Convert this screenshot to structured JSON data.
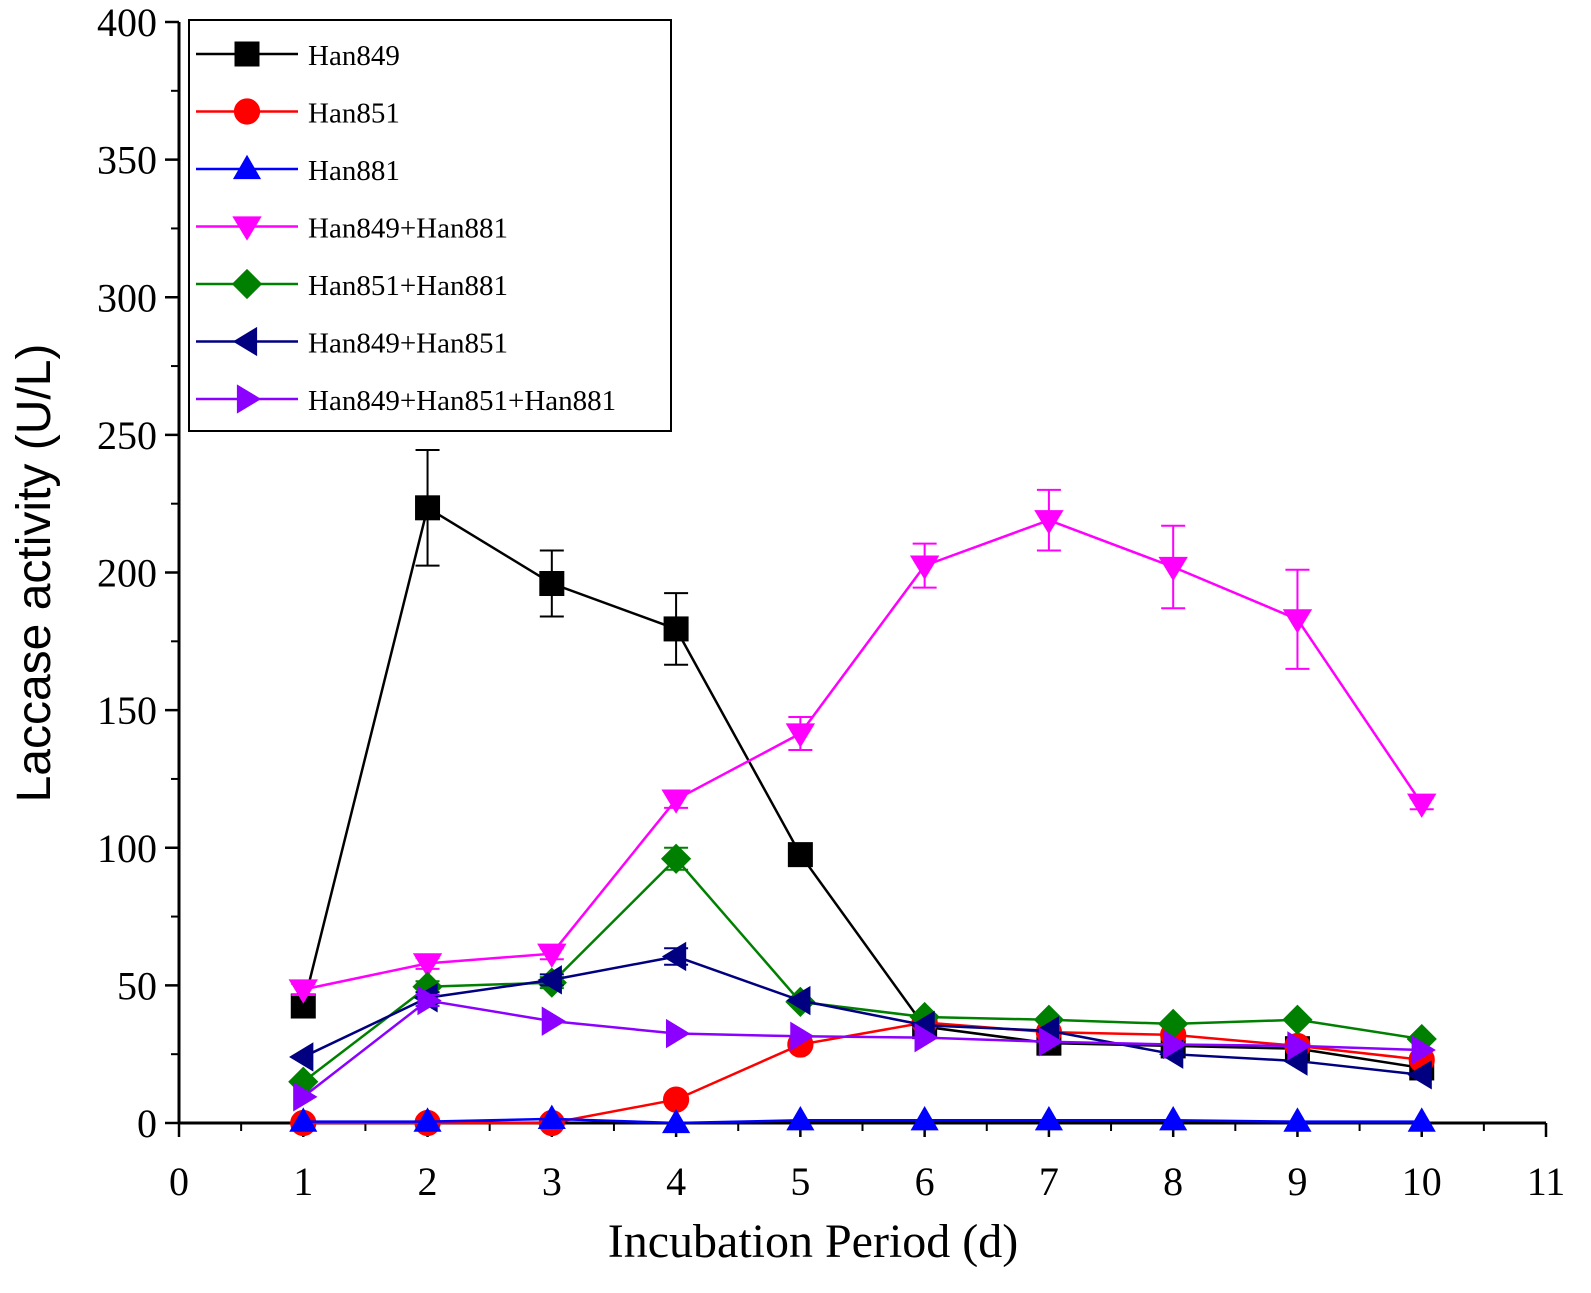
{
  "chart_data": {
    "type": "line",
    "title": "",
    "xlabel": "Incubation Period (d)",
    "ylabel": "Laccase activity (U/L)",
    "xlim": [
      0,
      11
    ],
    "ylim": [
      0,
      400
    ],
    "xticks": [
      0,
      1,
      2,
      3,
      4,
      5,
      6,
      7,
      8,
      9,
      10,
      11
    ],
    "yticks": [
      0,
      50,
      100,
      150,
      200,
      250,
      300,
      350,
      400
    ],
    "xtick_labels": [
      "0",
      "1",
      "2",
      "3",
      "4",
      "5",
      "6",
      "7",
      "8",
      "9",
      "10",
      "11"
    ],
    "ytick_labels": [
      "0",
      "50",
      "100",
      "150",
      "200",
      "250",
      "300",
      "350",
      "400"
    ],
    "legend_position": "top-left",
    "grid": false,
    "x": [
      1,
      2,
      3,
      4,
      5,
      6,
      7,
      8,
      9,
      10
    ],
    "series": [
      {
        "name": "Han849",
        "color": "#000000",
        "marker": "square",
        "values": [
          42.5,
          223.5,
          196,
          179.5,
          97.5,
          35,
          29,
          28,
          27,
          20
        ],
        "errors": [
          2,
          21,
          12,
          13,
          4,
          1,
          1,
          1,
          1,
          1
        ]
      },
      {
        "name": "Han851",
        "color": "#ff0000",
        "marker": "circle",
        "values": [
          0,
          0,
          0,
          8.5,
          28.5,
          36.5,
          33,
          32,
          28,
          23
        ],
        "errors": [
          0,
          0,
          0,
          1,
          1,
          1,
          1,
          1,
          1,
          1
        ]
      },
      {
        "name": "Han881",
        "color": "#0000ff",
        "marker": "triangle-up",
        "values": [
          0.5,
          0.5,
          1.5,
          0,
          1,
          1,
          1,
          1,
          0.5,
          0.5
        ],
        "errors": [
          0,
          0,
          0,
          0,
          0,
          0,
          0,
          0,
          0,
          0
        ]
      },
      {
        "name": "Han849+Han881",
        "color": "#ff00ff",
        "marker": "triangle-down",
        "values": [
          48.5,
          58,
          61.5,
          117.5,
          141.5,
          202.5,
          219,
          202,
          183,
          116
        ],
        "errors": [
          2,
          2,
          2,
          3,
          6,
          8,
          11,
          15,
          18,
          2
        ]
      },
      {
        "name": "Han851+Han881",
        "color": "#008000",
        "marker": "diamond",
        "values": [
          15,
          49.5,
          51,
          96,
          44,
          38.5,
          37.5,
          36,
          37.5,
          30.5
        ],
        "errors": [
          1,
          2,
          2,
          4,
          1,
          1,
          1,
          1,
          1,
          1
        ]
      },
      {
        "name": "Han849+Han851",
        "color": "#000080",
        "marker": "triangle-left",
        "values": [
          24,
          45.5,
          52,
          60.5,
          44.5,
          35.5,
          33.5,
          25,
          22.5,
          17.5
        ],
        "errors": [
          1,
          2,
          2,
          3,
          1,
          1,
          1,
          1,
          1,
          1
        ]
      },
      {
        "name": "Han849+Han851+Han881",
        "color": "#8b00ff",
        "marker": "triangle-right",
        "values": [
          9.5,
          44.5,
          37,
          32.5,
          31.5,
          31,
          29.5,
          28.5,
          28,
          26.5
        ],
        "errors": [
          1,
          2,
          1,
          1,
          1,
          1,
          1,
          1,
          1,
          1
        ]
      }
    ]
  }
}
